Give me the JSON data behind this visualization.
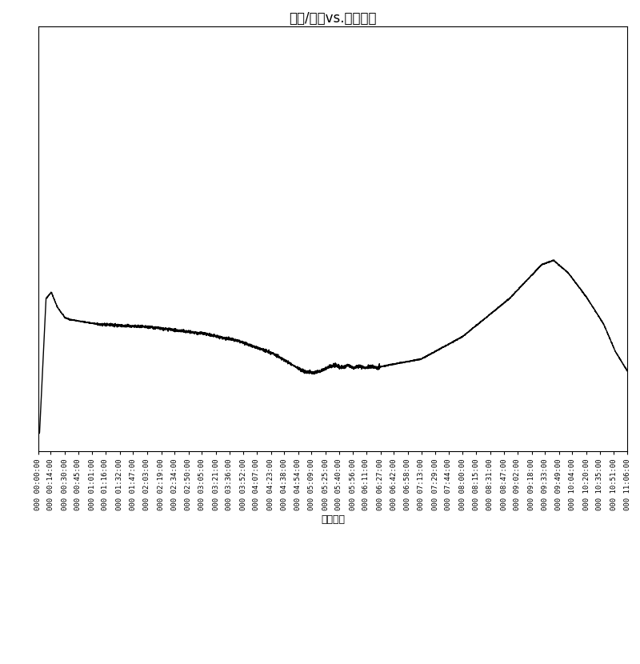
{
  "title": "电压/电流vs.运行时间",
  "xlabel": "运行时间",
  "ylabel": "",
  "background_color": "#ffffff",
  "line_color": "#000000",
  "line_width": 1.0,
  "title_fontsize": 12,
  "tick_fontsize": 6.5,
  "xlabel_fontsize": 9,
  "total_seconds": 39960,
  "ylim": [
    0,
    2.0
  ],
  "x_tick_labels": [
    "000 00:00:00",
    "000 00:14:00",
    "000 00:30:00",
    "000 00:45:00",
    "000 01:01:00",
    "000 01:16:00",
    "000 01:32:00",
    "000 01:47:00",
    "000 02:03:00",
    "000 02:19:00",
    "000 02:34:00",
    "000 02:50:00",
    "000 03:05:00",
    "000 03:21:00",
    "000 03:36:00",
    "000 03:52:00",
    "000 04:07:00",
    "000 04:23:00",
    "000 04:38:00",
    "000 04:54:00",
    "000 05:09:00",
    "000 05:25:00",
    "000 05:40:00",
    "000 05:56:00",
    "000 06:11:00",
    "000 06:27:00",
    "000 06:42:00",
    "000 06:58:00",
    "000 07:13:00",
    "000 07:29:00",
    "000 07:44:00",
    "000 08:00:00",
    "000 08:15:00",
    "000 08:31:00",
    "000 08:47:00",
    "000 09:02:00",
    "000 09:18:00",
    "000 09:33:00",
    "000 09:49:00",
    "000 10:04:00",
    "000 10:20:00",
    "000 10:35:00",
    "000 10:51:00",
    "000 11:06:00"
  ],
  "keypoints_x": [
    0.0,
    0.002,
    0.013,
    0.022,
    0.032,
    0.045,
    0.055,
    0.1,
    0.155,
    0.19,
    0.22,
    0.28,
    0.34,
    0.4,
    0.43,
    0.445,
    0.455,
    0.465,
    0.48,
    0.495,
    0.505,
    0.515,
    0.525,
    0.535,
    0.545,
    0.555,
    0.565,
    0.575,
    0.6,
    0.65,
    0.72,
    0.8,
    0.855,
    0.875,
    0.9,
    0.93,
    0.96,
    0.98,
    1.0
  ],
  "keypoints_y": [
    0.08,
    0.09,
    0.72,
    0.75,
    0.68,
    0.63,
    0.62,
    0.6,
    0.59,
    0.585,
    0.575,
    0.555,
    0.52,
    0.46,
    0.41,
    0.385,
    0.375,
    0.37,
    0.38,
    0.4,
    0.405,
    0.395,
    0.405,
    0.395,
    0.4,
    0.395,
    0.4,
    0.395,
    0.41,
    0.435,
    0.54,
    0.72,
    0.88,
    0.9,
    0.84,
    0.73,
    0.6,
    0.47,
    0.38
  ]
}
